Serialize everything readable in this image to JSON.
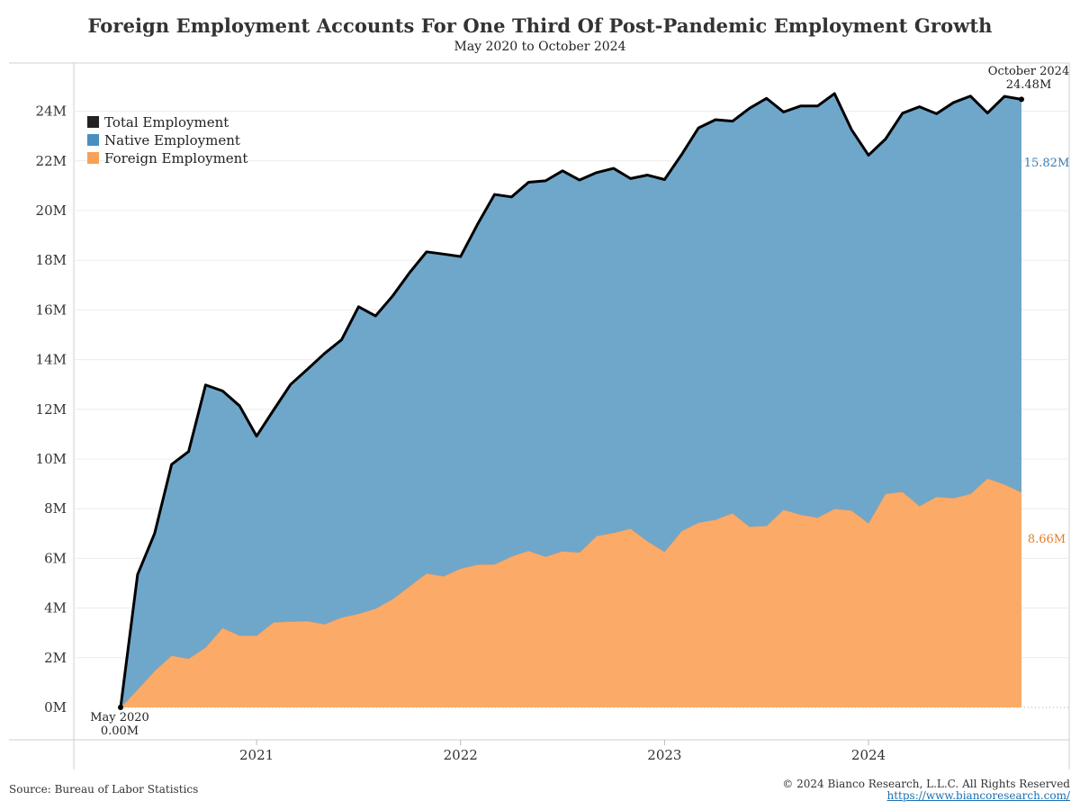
{
  "header": {
    "title": "Foreign Employment Accounts For One Third Of Post-Pandemic Employment Growth",
    "subtitle": "May 2020 to October 2024"
  },
  "footer": {
    "source": "Source: Bureau of Labor Statistics",
    "copyright": "© 2024 Bianco Research, L.L.C. All Rights Reserved",
    "url": "https://www.biancoresearch.com/"
  },
  "legend": [
    {
      "label": "Total Employment",
      "color": "#222222"
    },
    {
      "label": "Native Employment",
      "color": "#4a8fc2"
    },
    {
      "label": "Foreign Employment",
      "color": "#f7a256"
    }
  ],
  "colors": {
    "total": "#000000",
    "native": "#6fa7cb",
    "foreign": "#fbab67",
    "native_label": "#3a7db0",
    "foreign_label": "#e07d25"
  },
  "chart_data": {
    "type": "area",
    "title": "Foreign Employment Accounts For One Third Of Post-Pandemic Employment Growth",
    "subtitle": "May 2020 to October 2024",
    "xlabel": "",
    "ylabel": "",
    "x_start": "2020-05",
    "x_end": "2024-10",
    "x_tick_labels": [
      "2021",
      "2022",
      "2023",
      "2024"
    ],
    "y_tick_labels": [
      "0M",
      "2M",
      "4M",
      "6M",
      "8M",
      "10M",
      "12M",
      "14M",
      "16M",
      "18M",
      "20M",
      "22M",
      "24M"
    ],
    "ylim": [
      0,
      24.5
    ],
    "grid": true,
    "legend_position": "top-left",
    "annotations": [
      {
        "text": "May 2020",
        "at": "start"
      },
      {
        "text": "0.00M",
        "at": "start"
      },
      {
        "text": "October 2024",
        "at": "end"
      },
      {
        "text": "24.48M",
        "at": "end"
      },
      {
        "text": "15.82M",
        "at": "native-end"
      },
      {
        "text": "8.66M",
        "at": "foreign-end"
      }
    ],
    "series": [
      {
        "name": "Total Employment",
        "values": [
          0.0,
          5.35,
          7.0,
          9.78,
          10.3,
          12.98,
          12.74,
          12.14,
          10.92,
          11.97,
          13.0,
          13.62,
          14.25,
          14.8,
          16.13,
          15.76,
          16.56,
          17.5,
          18.34,
          18.25,
          18.15,
          19.45,
          20.65,
          20.55,
          21.14,
          21.2,
          21.6,
          21.23,
          21.53,
          21.7,
          21.29,
          21.43,
          21.25,
          22.25,
          23.33,
          23.66,
          23.6,
          24.12,
          24.52,
          23.97,
          24.21,
          24.21,
          24.71,
          23.26,
          22.23,
          22.88,
          23.92,
          24.18,
          23.9,
          24.35,
          24.61,
          23.93,
          24.6,
          24.48
        ]
      },
      {
        "name": "Native Employment",
        "values": [
          0.0,
          4.63,
          5.53,
          7.69,
          8.34,
          10.56,
          9.54,
          9.24,
          8.03,
          8.54,
          9.54,
          10.14,
          10.9,
          11.18,
          12.36,
          11.78,
          12.2,
          12.62,
          12.94,
          12.97,
          12.56,
          13.7,
          14.89,
          14.47,
          14.83,
          15.13,
          15.31,
          14.99,
          14.63,
          14.67,
          14.09,
          14.74,
          14.98,
          15.15,
          15.89,
          16.1,
          15.78,
          16.84,
          17.21,
          16.01,
          16.45,
          16.57,
          16.71,
          15.33,
          14.81,
          14.28,
          15.24,
          16.07,
          15.42,
          15.92,
          16.01,
          14.71,
          15.62,
          15.82
        ]
      },
      {
        "name": "Foreign Employment",
        "values": [
          0.0,
          0.72,
          1.47,
          2.09,
          1.96,
          2.42,
          3.2,
          2.9,
          2.89,
          3.43,
          3.46,
          3.48,
          3.35,
          3.62,
          3.77,
          3.98,
          4.36,
          4.88,
          5.4,
          5.28,
          5.59,
          5.75,
          5.76,
          6.08,
          6.31,
          6.07,
          6.29,
          6.24,
          6.9,
          7.03,
          7.2,
          6.69,
          6.27,
          7.1,
          7.44,
          7.56,
          7.82,
          7.28,
          7.31,
          7.96,
          7.76,
          7.64,
          8.0,
          7.93,
          7.42,
          8.6,
          8.68,
          8.11,
          8.48,
          8.43,
          8.6,
          9.22,
          8.98,
          8.66
        ]
      }
    ]
  }
}
